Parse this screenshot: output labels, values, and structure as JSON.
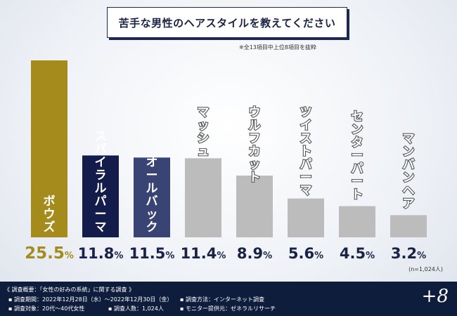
{
  "title": "苦手な男性のヘアスタイルを教えてください",
  "note": "※全13項目中上位8項目を抜粋",
  "sample": "(n=1,024人)",
  "colors": {
    "top": "#a58a1c",
    "second": "#141c4c",
    "third": "#3a4474",
    "rest": "#bcbcbc",
    "value_top": "#a58a1c",
    "value_rest": "#1a2346"
  },
  "chart_data": {
    "type": "bar",
    "categories": [
      "ボウズ",
      "スパイラルパーマ",
      "オールバック",
      "マッシュ",
      "ウルフカット",
      "ツイストパーマ",
      "センターパート",
      "マンバンヘア"
    ],
    "values": [
      25.5,
      11.8,
      11.5,
      11.4,
      8.9,
      5.6,
      4.5,
      3.2
    ],
    "value_labels": [
      {
        "num": "25.5",
        "unit": "%"
      },
      {
        "num": "11.8",
        "unit": "%"
      },
      {
        "num": "11.5",
        "unit": "%"
      },
      {
        "num": "11.4",
        "unit": "%"
      },
      {
        "num": "8.9",
        "unit": "%"
      },
      {
        "num": "5.6",
        "unit": "%"
      },
      {
        "num": "4.5",
        "unit": "%"
      },
      {
        "num": "3.2",
        "unit": "%"
      }
    ],
    "ylim": [
      0,
      25.5
    ],
    "grid": false,
    "title": "",
    "xlabel": "",
    "ylabel": ""
  },
  "footer": {
    "heading": "《 調査概要：「女性の好みの系統」に関する調査 》",
    "period": "▪ 調査期間：2022年12月28日（水）〜2022年12月30日（金）",
    "target": "▪ 調査対象：20代〜40代女性",
    "count": "▪ 調査人数：1,024人",
    "method": "▪ 調査方法：インターネット調査",
    "monitor": "▪ モニター提供元：ゼネラルリサーチ",
    "logo": "+8"
  }
}
